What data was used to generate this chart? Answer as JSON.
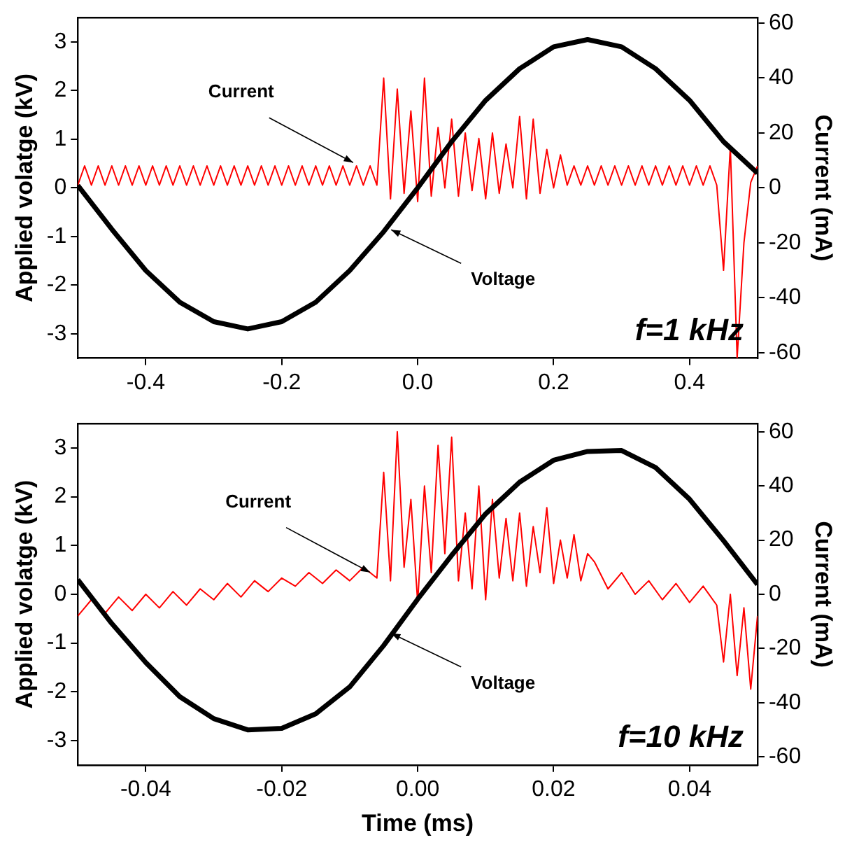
{
  "chart_data": [
    {
      "type": "line",
      "ylabel": "Applied volatge (kV)",
      "y2label": "Current (mA)",
      "legend": false,
      "grid": false,
      "xlim": [
        -0.5,
        0.5
      ],
      "xticks": [
        -0.4,
        -0.2,
        {
          "value": 0,
          "label": "0.0"
        },
        0.2,
        0.4
      ],
      "ylim": [
        -3.5,
        3.5
      ],
      "yticks": [
        -3,
        -2,
        -1,
        0,
        1,
        2,
        3
      ],
      "y2lim": [
        -62,
        62
      ],
      "y2ticks": [
        -60,
        -40,
        -20,
        0,
        20,
        40,
        60
      ],
      "annotations": [
        {
          "text": "Current",
          "x": -0.095,
          "y": 0.52
        },
        {
          "text": "Voltage",
          "x": -0.039,
          "y": -0.86
        },
        "f=1 kHz"
      ],
      "series": [
        {
          "color": "#ff0000",
          "axis": "y2",
          "x": [
            -0.5,
            -0.49,
            -0.48,
            -0.47,
            -0.46,
            -0.45,
            -0.44,
            -0.43,
            -0.42,
            -0.41,
            -0.4,
            -0.39,
            -0.38,
            -0.37,
            -0.36,
            -0.35,
            -0.34,
            -0.33,
            -0.32,
            -0.31,
            -0.3,
            -0.29,
            -0.28,
            -0.27,
            -0.26,
            -0.25,
            -0.24,
            -0.23,
            -0.22,
            -0.21,
            -0.2,
            -0.19,
            -0.18,
            -0.17,
            -0.16,
            -0.15,
            -0.14,
            -0.13,
            -0.12,
            -0.11,
            -0.1,
            -0.09,
            -0.08,
            -0.07,
            -0.06,
            -0.05,
            -0.04,
            -0.03,
            -0.02,
            -0.01,
            0,
            0.01,
            0.02,
            0.03,
            0.04,
            0.05,
            0.06,
            0.07,
            0.08,
            0.09,
            0.1,
            0.11,
            0.12,
            0.13,
            0.14,
            0.15,
            0.16,
            0.17,
            0.18,
            0.19,
            0.2,
            0.21,
            0.22,
            0.23,
            0.24,
            0.25,
            0.26,
            0.27,
            0.28,
            0.29,
            0.3,
            0.31,
            0.32,
            0.33,
            0.34,
            0.35,
            0.36,
            0.37,
            0.38,
            0.39,
            0.4,
            0.41,
            0.42,
            0.43,
            0.44,
            0.45,
            0.46,
            0.47,
            0.48,
            0.49,
            0.5
          ],
          "values": [
            1,
            8,
            1,
            8,
            1,
            8,
            1,
            8,
            1,
            8,
            1,
            8,
            1,
            8,
            1,
            8,
            1,
            8,
            1,
            8,
            1,
            8,
            1,
            8,
            1,
            8,
            1,
            8,
            1,
            8,
            1,
            8,
            1,
            8,
            1,
            8,
            1,
            8,
            1,
            8,
            1,
            8,
            1,
            8,
            1,
            40,
            -4,
            36,
            -2,
            28,
            -5,
            40,
            -3,
            22,
            0,
            25,
            -3,
            20,
            -1,
            18,
            -4,
            20,
            -2,
            16,
            0,
            26,
            -4,
            25,
            -2,
            14,
            0,
            12,
            1,
            8,
            1,
            8,
            1,
            8,
            1,
            8,
            1,
            8,
            1,
            8,
            1,
            8,
            1,
            8,
            1,
            8,
            1,
            8,
            1,
            8,
            1,
            -30,
            15,
            -62,
            -20,
            2,
            8
          ]
        },
        {
          "color": "#000000",
          "axis": "y",
          "x": [
            -0.5,
            -0.45,
            -0.4,
            -0.35,
            -0.3,
            -0.25,
            -0.2,
            -0.15,
            -0.1,
            -0.05,
            0,
            0.05,
            0.1,
            0.15,
            0.2,
            0.25,
            0.3,
            0.35,
            0.4,
            0.45,
            0.5
          ],
          "values": [
            0.05,
            -0.85,
            -1.7,
            -2.35,
            -2.75,
            -2.9,
            -2.75,
            -2.35,
            -1.7,
            -0.9,
            0,
            0.95,
            1.8,
            2.45,
            2.9,
            3.05,
            2.9,
            2.45,
            1.8,
            0.95,
            0.3
          ]
        }
      ]
    },
    {
      "type": "line",
      "xlabel": "Time (ms)",
      "ylabel": "Applied volatge (kV)",
      "y2label": "Current (mA)",
      "legend": false,
      "grid": false,
      "xlim": [
        -0.05,
        0.05
      ],
      "xticks": [
        -0.04,
        -0.02,
        {
          "value": 0,
          "label": "0.00"
        },
        0.02,
        0.04
      ],
      "ylim": [
        -3.5,
        3.5
      ],
      "yticks": [
        -3,
        -2,
        -1,
        0,
        1,
        2,
        3
      ],
      "y2lim": [
        -63,
        63
      ],
      "y2ticks": [
        -60,
        -40,
        -20,
        0,
        20,
        40,
        60
      ],
      "annotations": [
        {
          "text": "Current",
          "x": -0.007,
          "y": 0.45
        },
        {
          "text": "Voltage",
          "x": -0.0039,
          "y": -0.8
        },
        "f=10 kHz"
      ],
      "series": [
        {
          "color": "#ff0000",
          "axis": "y2",
          "x": [
            -0.05,
            -0.048,
            -0.046,
            -0.044,
            -0.042,
            -0.04,
            -0.038,
            -0.036,
            -0.034,
            -0.032,
            -0.03,
            -0.028,
            -0.026,
            -0.024,
            -0.022,
            -0.02,
            -0.018,
            -0.016,
            -0.014,
            -0.012,
            -0.01,
            -0.008,
            -0.006,
            -0.005,
            -0.004,
            -0.003,
            -0.002,
            -0.001,
            0,
            0.001,
            0.002,
            0.003,
            0.004,
            0.005,
            0.006,
            0.007,
            0.008,
            0.009,
            0.01,
            0.011,
            0.012,
            0.013,
            0.014,
            0.015,
            0.016,
            0.017,
            0.018,
            0.019,
            0.02,
            0.021,
            0.022,
            0.023,
            0.024,
            0.025,
            0.026,
            0.028,
            0.03,
            0.032,
            0.034,
            0.036,
            0.038,
            0.04,
            0.042,
            0.044,
            0.045,
            0.046,
            0.047,
            0.048,
            0.049,
            0.05
          ],
          "values": [
            -8,
            -2,
            -7,
            -1,
            -6,
            0,
            -5,
            1,
            -4,
            2,
            -2,
            4,
            -1,
            5,
            1,
            6,
            3,
            8,
            4,
            9,
            5,
            10,
            6,
            45,
            5,
            60,
            10,
            35,
            -3,
            40,
            8,
            55,
            15,
            58,
            5,
            30,
            2,
            40,
            -2,
            35,
            6,
            28,
            5,
            30,
            3,
            25,
            8,
            32,
            4,
            20,
            6,
            22,
            5,
            15,
            12,
            2,
            8,
            0,
            5,
            -2,
            4,
            -3,
            3,
            -4,
            -25,
            0,
            -30,
            -5,
            -35,
            -8
          ]
        },
        {
          "color": "#000000",
          "axis": "y",
          "x": [
            -0.05,
            -0.045,
            -0.04,
            -0.035,
            -0.03,
            -0.025,
            -0.02,
            -0.015,
            -0.01,
            -0.005,
            0,
            0.005,
            0.01,
            0.015,
            0.02,
            0.025,
            0.03,
            0.035,
            0.04,
            0.045,
            0.05
          ],
          "values": [
            0.3,
            -0.6,
            -1.4,
            -2.1,
            -2.55,
            -2.78,
            -2.75,
            -2.45,
            -1.9,
            -1.05,
            -0.1,
            0.8,
            1.65,
            2.3,
            2.75,
            2.93,
            2.95,
            2.6,
            1.95,
            1.1,
            0.2
          ]
        }
      ]
    }
  ]
}
